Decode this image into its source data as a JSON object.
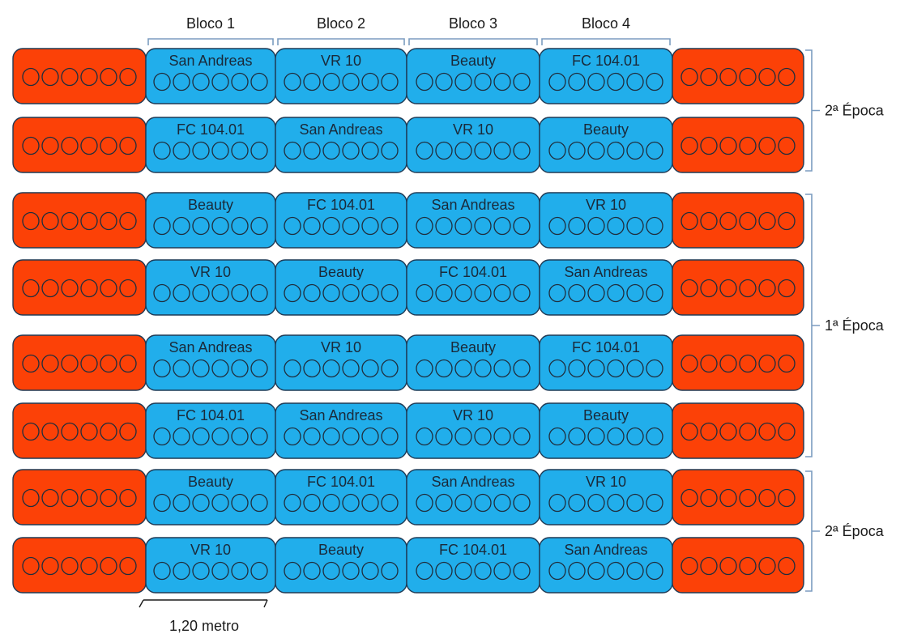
{
  "blocks": [
    "Bloco 1",
    "Bloco 2",
    "Bloco 3",
    "Bloco 4"
  ],
  "rows": [
    [
      "San Andreas",
      "VR 10",
      "Beauty",
      "FC 104.01"
    ],
    [
      "FC 104.01",
      "San Andreas",
      "VR 10",
      "Beauty"
    ],
    [
      "Beauty",
      "FC 104.01",
      "San Andreas",
      "VR 10"
    ],
    [
      "VR 10",
      "Beauty",
      "FC 104.01",
      "San Andreas"
    ],
    [
      "San Andreas",
      "VR 10",
      "Beauty",
      "FC 104.01"
    ],
    [
      "FC 104.01",
      "San Andreas",
      "VR 10",
      "Beauty"
    ],
    [
      "Beauty",
      "FC 104.01",
      "San Andreas",
      "VR 10"
    ],
    [
      "VR 10",
      "Beauty",
      "FC 104.01",
      "San Andreas"
    ]
  ],
  "epochs": [
    {
      "label": "2ª Época",
      "first_row": 0,
      "last_row": 1
    },
    {
      "label": "1ª Época",
      "first_row": 2,
      "last_row": 5
    },
    {
      "label": "2ª Época",
      "first_row": 6,
      "last_row": 7
    }
  ],
  "plants_per_plot": 6,
  "scale_label": "1,20 metro",
  "colors": {
    "border": "#fc4107",
    "plot": "#21aeeb",
    "bracket": "#7b9cc0"
  }
}
